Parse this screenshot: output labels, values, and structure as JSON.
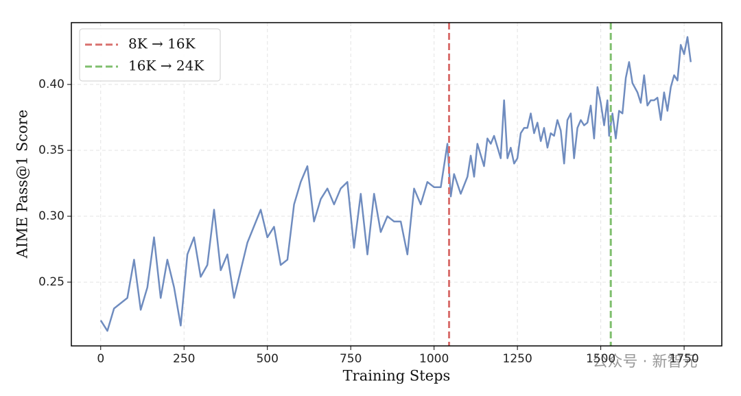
{
  "chart_data": {
    "type": "line",
    "xlabel": "Training Steps",
    "ylabel": "AIME Pass@1 Score",
    "watermark": "公众号 · 新智元",
    "color": "#6f8cbf",
    "x": [
      0,
      20,
      40,
      80,
      100,
      120,
      140,
      160,
      180,
      200,
      220,
      240,
      260,
      280,
      300,
      320,
      340,
      360,
      380,
      400,
      440,
      480,
      500,
      520,
      540,
      560,
      580,
      600,
      620,
      640,
      660,
      680,
      700,
      720,
      740,
      760,
      780,
      800,
      820,
      840,
      860,
      880,
      900,
      920,
      940,
      960,
      980,
      1000,
      1020,
      1040,
      1050,
      1060,
      1080,
      1100,
      1110,
      1120,
      1130,
      1150,
      1160,
      1170,
      1180,
      1200,
      1210,
      1220,
      1230,
      1240,
      1250,
      1260,
      1270,
      1280,
      1290,
      1300,
      1310,
      1320,
      1330,
      1340,
      1350,
      1360,
      1370,
      1380,
      1390,
      1400,
      1410,
      1420,
      1430,
      1440,
      1450,
      1460,
      1470,
      1480,
      1490,
      1500,
      1510,
      1520,
      1525,
      1535,
      1545,
      1555,
      1565,
      1575,
      1585,
      1595,
      1610,
      1620,
      1630,
      1640,
      1650,
      1660,
      1670,
      1680,
      1690,
      1700,
      1710,
      1720,
      1730,
      1740,
      1750,
      1760,
      1770
    ],
    "values": [
      0.221,
      0.213,
      0.23,
      0.238,
      0.267,
      0.229,
      0.246,
      0.284,
      0.238,
      0.267,
      0.246,
      0.217,
      0.271,
      0.284,
      0.254,
      0.263,
      0.305,
      0.259,
      0.271,
      0.238,
      0.28,
      0.305,
      0.284,
      0.292,
      0.263,
      0.267,
      0.309,
      0.326,
      0.338,
      0.296,
      0.313,
      0.321,
      0.309,
      0.321,
      0.326,
      0.276,
      0.317,
      0.271,
      0.317,
      0.288,
      0.3,
      0.296,
      0.296,
      0.271,
      0.321,
      0.309,
      0.326,
      0.322,
      0.322,
      0.355,
      0.315,
      0.332,
      0.317,
      0.33,
      0.346,
      0.33,
      0.355,
      0.338,
      0.359,
      0.355,
      0.361,
      0.344,
      0.388,
      0.344,
      0.352,
      0.34,
      0.344,
      0.363,
      0.367,
      0.367,
      0.378,
      0.363,
      0.371,
      0.357,
      0.367,
      0.352,
      0.363,
      0.361,
      0.373,
      0.365,
      0.34,
      0.373,
      0.378,
      0.344,
      0.367,
      0.373,
      0.369,
      0.371,
      0.384,
      0.359,
      0.398,
      0.386,
      0.369,
      0.388,
      0.361,
      0.378,
      0.359,
      0.38,
      0.378,
      0.405,
      0.417,
      0.401,
      0.394,
      0.386,
      0.407,
      0.384,
      0.388,
      0.388,
      0.39,
      0.373,
      0.394,
      0.38,
      0.398,
      0.407,
      0.403,
      0.43,
      0.423,
      0.436,
      0.417
    ],
    "vlines": [
      {
        "name": "8K → 16K",
        "x": 1045,
        "color": "#d9706e"
      },
      {
        "name": "16K → 24K",
        "x": 1530,
        "color": "#7fbf6e"
      }
    ],
    "xlim": [
      -88,
      1863
    ],
    "ylim": [
      0.2016,
      0.4469
    ],
    "xticks": [
      0,
      250,
      500,
      750,
      1000,
      1250,
      1500,
      1750
    ],
    "yticks": [
      0.25,
      {
        "value": 0.3,
        "label": "0.30"
      },
      0.35,
      {
        "value": 0.4,
        "label": "0.40"
      }
    ],
    "grid": true,
    "legend_position": "upper left"
  }
}
